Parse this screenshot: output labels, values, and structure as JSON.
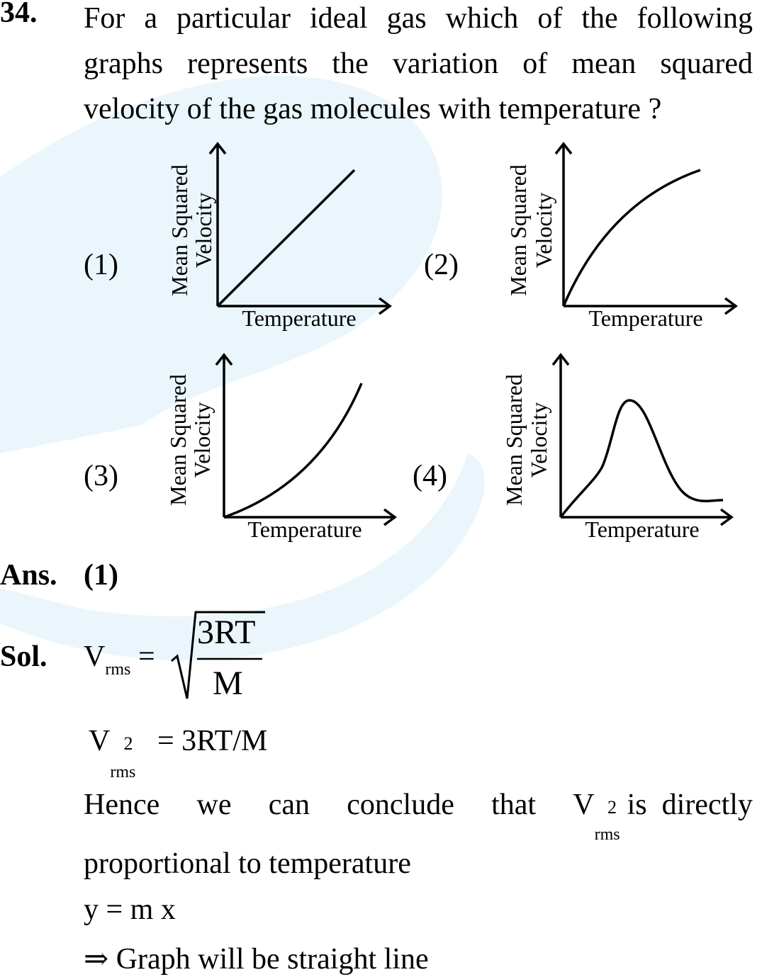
{
  "question": {
    "number": "34.",
    "lines": [
      "For a particular ideal gas which of the following",
      "graphs represents the variation of mean squared",
      "velocity of the gas molecules with temperature ?"
    ]
  },
  "options": [
    {
      "label": "(1)",
      "ylabel_line1": "Mean Squared",
      "ylabel_line2": "Velocity",
      "xlabel": "Temperature",
      "shape": "straight line"
    },
    {
      "label": "(2)",
      "ylabel_line1": "Mean Squared",
      "ylabel_line2": "Velocity",
      "xlabel": "Temperature",
      "shape": "concave down curve"
    },
    {
      "label": "(3)",
      "ylabel_line1": "Mean Squared",
      "ylabel_line2": "Velocity",
      "xlabel": "Temperature",
      "shape": "concave up curve"
    },
    {
      "label": "(4)",
      "ylabel_line1": "Mean Squared",
      "ylabel_line2": "Velocity",
      "xlabel": "Temperature",
      "shape": "peak curve"
    }
  ],
  "answer": {
    "label": "Ans.",
    "value": "(1)"
  },
  "solution": {
    "label": "Sol.",
    "vrms_V": "V",
    "vrms_sub": "rms",
    "equals": "=",
    "numerator": "3RT",
    "denominator": "M",
    "eq2_sup": "2",
    "eq2_rhs": "= 3RT/M",
    "hence_words": [
      "Hence",
      "we",
      "can",
      "conclude",
      "that"
    ],
    "hence_tail": "is  directly",
    "proportional": "proportional to temperature",
    "ymx": "y = m x",
    "arrow": "⇒",
    "conclusion": "Graph will be straight line"
  }
}
